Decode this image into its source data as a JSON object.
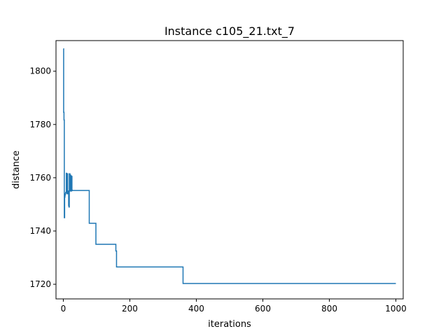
{
  "chart_data": {
    "type": "line",
    "title": "Instance c105_21.txt_7",
    "xlabel": "iterations",
    "ylabel": "distance",
    "xlim": [
      -22,
      1022
    ],
    "ylim": [
      1714.5,
      1811.5
    ],
    "xticks": [
      0,
      200,
      400,
      600,
      800,
      1000
    ],
    "yticks": [
      1720,
      1740,
      1760,
      1780,
      1800
    ],
    "grid": false,
    "legend": "none",
    "series": [
      {
        "color": "#1f77b4",
        "x": [
          0,
          1,
          1,
          2,
          2,
          3,
          3,
          4,
          4,
          5,
          5,
          6,
          6,
          7,
          7,
          9,
          9,
          10,
          10,
          11,
          11,
          12,
          12,
          13,
          13,
          15,
          15,
          16,
          16,
          17,
          17,
          18,
          18,
          20,
          20,
          21,
          21,
          22,
          22,
          23,
          23,
          24,
          24,
          25,
          25,
          26,
          26,
          27,
          27,
          78,
          78,
          98,
          98,
          158,
          158,
          160,
          160,
          360,
          360,
          1000
        ],
        "y": [
          1808.4,
          1808.4,
          1784.6,
          1784.6,
          1781.7,
          1781.7,
          1745.0,
          1745.0,
          1752.7,
          1752.7,
          1753.5,
          1753.5,
          1754.0,
          1754.0,
          1754.5,
          1754.5,
          1761.7,
          1761.7,
          1755.0,
          1755.0,
          1754.0,
          1754.0,
          1761.5,
          1761.5,
          1755.0,
          1755.0,
          1754.0,
          1754.0,
          1749.5,
          1749.5,
          1749.0,
          1749.0,
          1761.5,
          1761.5,
          1755.0,
          1755.0,
          1761.0,
          1761.0,
          1755.5,
          1755.5,
          1760.7,
          1760.7,
          1755.0,
          1755.0,
          1760.5,
          1760.5,
          1755.3,
          1755.3,
          1755.2,
          1755.2,
          1742.9,
          1742.9,
          1735.0,
          1735.0,
          1732.5,
          1732.5,
          1726.5,
          1726.5,
          1720.3,
          1720.3
        ]
      }
    ]
  }
}
